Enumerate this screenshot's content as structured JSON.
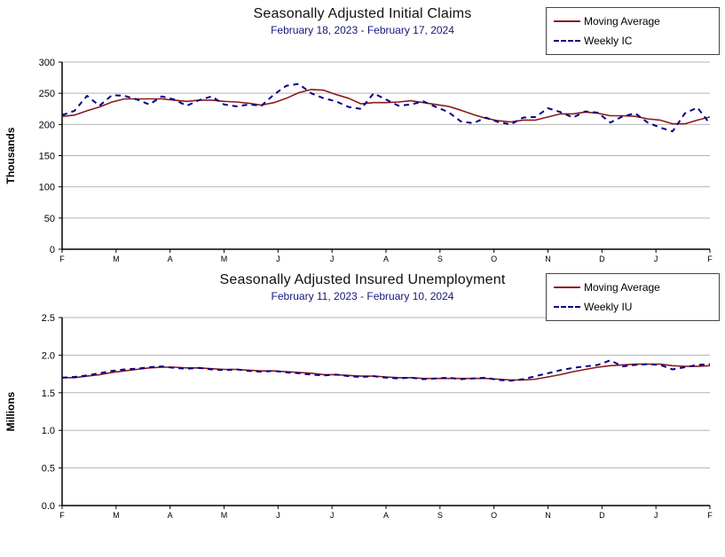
{
  "page": {
    "background": "#ffffff"
  },
  "colors": {
    "moving_average": "#8b1a1a",
    "weekly": "#00008b",
    "gridline": "#b3b3b3",
    "subtitle_text": "#16167a"
  },
  "chart_data": [
    {
      "id": "initial-claims",
      "type": "line",
      "title": "Seasonally Adjusted Initial Claims",
      "subtitle": "February 18, 2023 - February 17, 2024",
      "ylabel": "Thousands",
      "ylim": [
        0,
        300
      ],
      "yticks": [
        "0",
        "50",
        "100",
        "150",
        "200",
        "250",
        "300"
      ],
      "x_tick_labels": [
        "F",
        "M",
        "A",
        "M",
        "J",
        "J",
        "A",
        "S",
        "O",
        "N",
        "D",
        "J",
        "F"
      ],
      "grid": true,
      "legend_position": "top-right",
      "series": [
        {
          "name": "Moving Average",
          "color": "#8b1a1a",
          "style": "solid",
          "values": [
            213,
            215,
            222,
            228,
            236,
            241,
            241,
            241,
            241,
            239,
            237,
            239,
            239,
            237,
            236,
            234,
            231,
            235,
            242,
            251,
            256,
            255,
            248,
            242,
            233,
            235,
            235,
            236,
            238,
            235,
            232,
            229,
            223,
            216,
            210,
            206,
            204,
            207,
            207,
            212,
            217,
            217,
            220,
            218,
            214,
            214,
            213,
            209,
            207,
            201,
            201,
            207,
            212
          ]
        },
        {
          "name": "Weekly IC",
          "color": "#00008b",
          "style": "dashed",
          "values": [
            215,
            222,
            246,
            230,
            247,
            246,
            240,
            232,
            245,
            240,
            230,
            239,
            245,
            232,
            229,
            232,
            230,
            248,
            262,
            265,
            250,
            242,
            237,
            228,
            225,
            250,
            240,
            230,
            232,
            237,
            228,
            220,
            205,
            202,
            211,
            204,
            200,
            211,
            212,
            226,
            220,
            211,
            221,
            219,
            203,
            213,
            218,
            203,
            195,
            189,
            218,
            227,
            201
          ]
        }
      ]
    },
    {
      "id": "insured-unemployment",
      "type": "line",
      "title": "Seasonally Adjusted Insured Unemployment",
      "subtitle": "February 11, 2023 - February 10, 2024",
      "ylabel": "Millions",
      "ylim": [
        0,
        2.5
      ],
      "yticks": [
        "0.0",
        "0.5",
        "1.0",
        "1.5",
        "2.0",
        "2.5"
      ],
      "x_tick_labels": [
        "F",
        "M",
        "A",
        "M",
        "J",
        "J",
        "A",
        "S",
        "O",
        "N",
        "D",
        "J",
        "F"
      ],
      "grid": true,
      "legend_position": "top-right",
      "series": [
        {
          "name": "Moving Average",
          "color": "#8b1a1a",
          "style": "solid",
          "values": [
            1.7,
            1.7,
            1.72,
            1.74,
            1.77,
            1.79,
            1.81,
            1.83,
            1.84,
            1.84,
            1.83,
            1.83,
            1.82,
            1.81,
            1.81,
            1.8,
            1.79,
            1.79,
            1.78,
            1.77,
            1.76,
            1.74,
            1.74,
            1.73,
            1.72,
            1.72,
            1.71,
            1.7,
            1.7,
            1.69,
            1.69,
            1.69,
            1.69,
            1.69,
            1.69,
            1.68,
            1.67,
            1.67,
            1.68,
            1.71,
            1.74,
            1.78,
            1.81,
            1.84,
            1.86,
            1.87,
            1.88,
            1.88,
            1.88,
            1.86,
            1.85,
            1.85,
            1.86
          ]
        },
        {
          "name": "Weekly IU",
          "color": "#00008b",
          "style": "dashed",
          "values": [
            1.7,
            1.71,
            1.73,
            1.76,
            1.79,
            1.81,
            1.82,
            1.84,
            1.85,
            1.83,
            1.82,
            1.83,
            1.81,
            1.8,
            1.81,
            1.79,
            1.78,
            1.79,
            1.77,
            1.76,
            1.74,
            1.73,
            1.74,
            1.72,
            1.71,
            1.72,
            1.7,
            1.69,
            1.7,
            1.68,
            1.69,
            1.7,
            1.68,
            1.69,
            1.7,
            1.67,
            1.66,
            1.68,
            1.72,
            1.76,
            1.8,
            1.83,
            1.85,
            1.87,
            1.93,
            1.85,
            1.87,
            1.88,
            1.87,
            1.81,
            1.84,
            1.87,
            1.88
          ]
        }
      ]
    }
  ]
}
